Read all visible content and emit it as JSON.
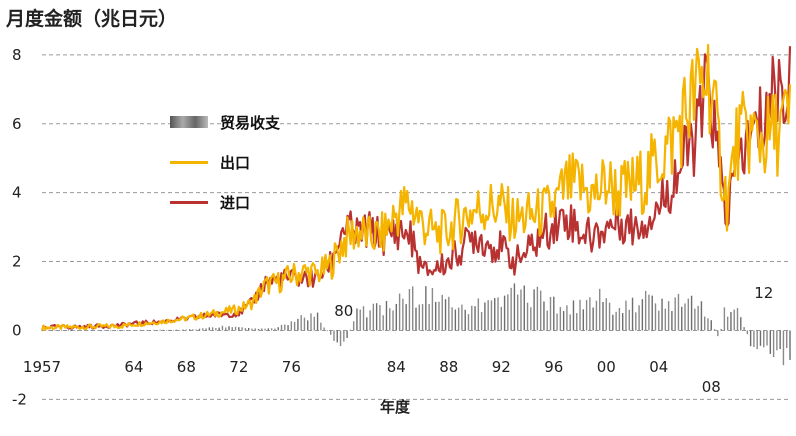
{
  "chart_data": {
    "type": "line",
    "title": "月度金额（兆日元）",
    "xlabel": "年度",
    "ylabel": "",
    "ylim": [
      -2.6,
      8.2
    ],
    "xlim": [
      1957,
      2014
    ],
    "y_ticks": [
      "-2",
      "0",
      "2",
      "4",
      "6",
      "8"
    ],
    "x_ticks": [
      "1957",
      "64",
      "68",
      "72",
      "76",
      "84",
      "88",
      "92",
      "96",
      "00",
      "04"
    ],
    "annotations": [
      "80",
      "08",
      "12"
    ],
    "grid": "horizontal dashed",
    "legend_position": "upper-left",
    "colors": {
      "bar": "#8a8a8a",
      "export": "#f5b400",
      "import": "#b83232"
    },
    "series": [
      {
        "name": "贸易收支",
        "type": "bar",
        "x": [
          1957,
          1959,
          1961,
          1963,
          1965,
          1967,
          1969,
          1971,
          1973,
          1975,
          1977,
          1978,
          1979,
          1980,
          1981,
          1983,
          1985,
          1986,
          1987,
          1989,
          1991,
          1993,
          1995,
          1997,
          1999,
          2001,
          2003,
          2005,
          2007,
          2008,
          2008.6,
          2009,
          2010,
          2011,
          2012,
          2013,
          2014
        ],
        "values": [
          0,
          0,
          0,
          0,
          0.02,
          0.02,
          0.05,
          0.15,
          0.05,
          0.1,
          0.45,
          0.5,
          -0.2,
          -0.55,
          0.6,
          0.8,
          1.1,
          1.3,
          1.0,
          0.7,
          0.9,
          1.3,
          1.1,
          0.7,
          1.2,
          0.7,
          1.0,
          0.9,
          1.1,
          0.3,
          -0.3,
          0.6,
          0.7,
          -0.4,
          -0.7,
          -1.0,
          -0.9
        ]
      },
      {
        "name": "出口",
        "type": "line",
        "x": [
          1957,
          1960,
          1963,
          1964,
          1966,
          1968,
          1970,
          1972,
          1973,
          1974,
          1975,
          1976,
          1977,
          1978,
          1979,
          1980,
          1981,
          1982,
          1983,
          1984,
          1985,
          1986,
          1987,
          1988,
          1989,
          1990,
          1991,
          1992,
          1993,
          1994,
          1995,
          1996,
          1997,
          1998,
          1999,
          2000,
          2001,
          2002,
          2003,
          2004,
          2005,
          2006,
          2007,
          2007.8,
          2008.5,
          2009.2,
          2010,
          2011,
          2012,
          2013,
          2014
        ],
        "values": [
          0.08,
          0.1,
          0.13,
          0.18,
          0.25,
          0.35,
          0.48,
          0.62,
          0.8,
          1.3,
          1.4,
          1.6,
          1.7,
          1.65,
          1.9,
          2.6,
          2.9,
          2.7,
          2.8,
          3.4,
          3.7,
          3.1,
          2.8,
          2.9,
          3.3,
          3.5,
          3.6,
          3.6,
          3.2,
          3.3,
          3.4,
          3.6,
          4.2,
          4.2,
          3.9,
          4.3,
          4.0,
          4.2,
          4.4,
          5.0,
          5.5,
          6.3,
          7.0,
          7.5,
          5.5,
          3.7,
          5.6,
          5.7,
          5.5,
          5.8,
          6.1
        ]
      },
      {
        "name": "进口",
        "type": "line",
        "x": [
          1957,
          1960,
          1963,
          1964,
          1966,
          1968,
          1970,
          1972,
          1973,
          1974,
          1975,
          1976,
          1977,
          1978,
          1979,
          1980,
          1981,
          1982,
          1983,
          1984,
          1985,
          1986,
          1987,
          1988,
          1989,
          1990,
          1991,
          1992,
          1993,
          1994,
          1995,
          1996,
          1997,
          1998,
          1999,
          2000,
          2001,
          2002,
          2003,
          2004,
          2005,
          2006,
          2007,
          2007.8,
          2008.5,
          2009.2,
          2010,
          2011,
          2012,
          2013,
          2014
        ],
        "values": [
          0.1,
          0.1,
          0.15,
          0.2,
          0.25,
          0.35,
          0.45,
          0.5,
          0.8,
          1.4,
          1.5,
          1.5,
          1.5,
          1.5,
          2.0,
          3.0,
          2.8,
          2.9,
          2.7,
          2.9,
          2.8,
          1.7,
          1.8,
          2.0,
          2.4,
          2.8,
          2.5,
          2.4,
          2.0,
          2.3,
          2.7,
          3.1,
          3.3,
          2.9,
          2.7,
          3.0,
          3.2,
          3.0,
          3.2,
          3.6,
          4.3,
          5.0,
          5.8,
          7.3,
          5.0,
          3.3,
          5.0,
          5.5,
          6.2,
          7.2,
          6.9
        ]
      }
    ]
  }
}
